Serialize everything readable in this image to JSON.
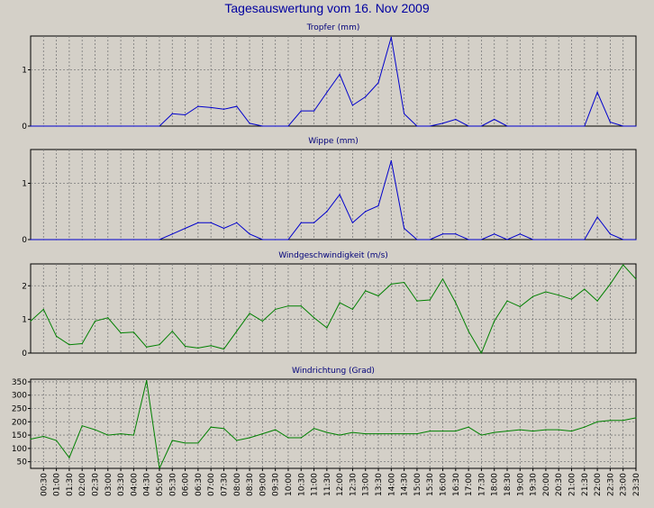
{
  "title": "Tagesauswertung vom 16. Nov 2009",
  "x_ticks": [
    "00:30",
    "01:00",
    "01:30",
    "02:00",
    "02:30",
    "03:00",
    "03:30",
    "04:00",
    "04:30",
    "05:00",
    "05:30",
    "06:00",
    "06:30",
    "07:00",
    "07:30",
    "08:00",
    "08:30",
    "09:00",
    "09:30",
    "10:00",
    "10:30",
    "11:00",
    "11:30",
    "12:00",
    "12:30",
    "13:00",
    "13:30",
    "14:00",
    "14:30",
    "15:00",
    "15:30",
    "16:00",
    "16:30",
    "17:00",
    "17:30",
    "18:00",
    "18:30",
    "19:00",
    "19:30",
    "20:00",
    "20:30",
    "21:00",
    "21:30",
    "22:00",
    "22:30",
    "23:00",
    "23:30"
  ],
  "colors": {
    "blue_series": "#0000cc",
    "green_series": "#008000",
    "panel_bg": "#d4d0c8",
    "title": "#0000a0"
  },
  "chart_data": [
    {
      "type": "line",
      "title": "Tropfer (mm)",
      "x": [
        "00:00",
        "00:30",
        "01:00",
        "01:30",
        "02:00",
        "02:30",
        "03:00",
        "03:30",
        "04:00",
        "04:30",
        "05:00",
        "05:30",
        "06:00",
        "06:30",
        "07:00",
        "07:30",
        "08:00",
        "08:30",
        "09:00",
        "09:30",
        "10:00",
        "10:30",
        "11:00",
        "11:30",
        "12:00",
        "12:30",
        "13:00",
        "13:30",
        "14:00",
        "14:30",
        "15:00",
        "15:30",
        "16:00",
        "16:30",
        "17:00",
        "17:30",
        "18:00",
        "18:30",
        "19:00",
        "19:30",
        "20:00",
        "20:30",
        "21:00",
        "21:30",
        "22:00",
        "22:30",
        "23:00",
        "23:30"
      ],
      "values": [
        0,
        0,
        0,
        0,
        0,
        0,
        0,
        0,
        0,
        0,
        0,
        0.22,
        0.2,
        0.35,
        0.33,
        0.3,
        0.35,
        0.05,
        0,
        0,
        0,
        0.27,
        0.27,
        0.6,
        0.92,
        0.37,
        0.52,
        0.77,
        1.58,
        0.22,
        0,
        0,
        0.05,
        0.12,
        0,
        0,
        0.12,
        0,
        0,
        0,
        0,
        0,
        0,
        0,
        0.6,
        0.07,
        0,
        0
      ],
      "ylim": [
        0,
        1.6
      ],
      "yticks": [
        "0",
        "1"
      ],
      "grid": true,
      "color": "#0000cc"
    },
    {
      "type": "line",
      "title": "Wippe (mm)",
      "x": [
        "00:00",
        "00:30",
        "01:00",
        "01:30",
        "02:00",
        "02:30",
        "03:00",
        "03:30",
        "04:00",
        "04:30",
        "05:00",
        "05:30",
        "06:00",
        "06:30",
        "07:00",
        "07:30",
        "08:00",
        "08:30",
        "09:00",
        "09:30",
        "10:00",
        "10:30",
        "11:00",
        "11:30",
        "12:00",
        "12:30",
        "13:00",
        "13:30",
        "14:00",
        "14:30",
        "15:00",
        "15:30",
        "16:00",
        "16:30",
        "17:00",
        "17:30",
        "18:00",
        "18:30",
        "19:00",
        "19:30",
        "20:00",
        "20:30",
        "21:00",
        "21:30",
        "22:00",
        "22:30",
        "23:00",
        "23:30"
      ],
      "values": [
        0,
        0,
        0,
        0,
        0,
        0,
        0,
        0,
        0,
        0,
        0,
        0.1,
        0.2,
        0.3,
        0.3,
        0.2,
        0.3,
        0.1,
        0,
        0,
        0,
        0.3,
        0.3,
        0.5,
        0.8,
        0.3,
        0.5,
        0.6,
        1.4,
        0.2,
        0,
        0,
        0.1,
        0.1,
        0,
        0,
        0.1,
        0,
        0.1,
        0,
        0,
        0,
        0,
        0,
        0.4,
        0.1,
        0,
        0
      ],
      "ylim": [
        0,
        1.6
      ],
      "yticks": [
        "0",
        "1"
      ],
      "grid": true,
      "color": "#0000cc"
    },
    {
      "type": "line",
      "title": "Windgeschwindigkeit (m/s)",
      "x": [
        "00:00",
        "00:30",
        "01:00",
        "01:30",
        "02:00",
        "02:30",
        "03:00",
        "03:30",
        "04:00",
        "04:30",
        "05:00",
        "05:30",
        "06:00",
        "06:30",
        "07:00",
        "07:30",
        "08:00",
        "08:30",
        "09:00",
        "09:30",
        "10:00",
        "10:30",
        "11:00",
        "11:30",
        "12:00",
        "12:30",
        "13:00",
        "13:30",
        "14:00",
        "14:30",
        "15:00",
        "15:30",
        "16:00",
        "16:30",
        "17:00",
        "17:30",
        "18:00",
        "18:30",
        "19:00",
        "19:30",
        "20:00",
        "20:30",
        "21:00",
        "21:30",
        "22:00",
        "22:30",
        "23:00",
        "23:30"
      ],
      "values": [
        0.95,
        1.3,
        0.5,
        0.25,
        0.28,
        0.95,
        1.05,
        0.6,
        0.62,
        0.18,
        0.25,
        0.65,
        0.2,
        0.15,
        0.22,
        0.12,
        0.65,
        1.18,
        0.95,
        1.3,
        1.4,
        1.4,
        1.05,
        0.75,
        1.5,
        1.3,
        1.85,
        1.7,
        2.05,
        2.1,
        1.55,
        1.58,
        2.2,
        1.5,
        0.65,
        0.0,
        0.95,
        1.55,
        1.38,
        1.68,
        1.82,
        1.72,
        1.6,
        1.9,
        1.55,
        2.05,
        2.62,
        2.2
      ],
      "ylim": [
        0,
        2.65
      ],
      "yticks": [
        "0",
        "1",
        "2"
      ],
      "grid": true,
      "color": "#008000"
    },
    {
      "type": "line",
      "title": "Windrichtung (Grad)",
      "x": [
        "00:00",
        "00:30",
        "01:00",
        "01:30",
        "02:00",
        "02:30",
        "03:00",
        "03:30",
        "04:00",
        "04:30",
        "05:00",
        "05:30",
        "06:00",
        "06:30",
        "07:00",
        "07:30",
        "08:00",
        "08:30",
        "09:00",
        "09:30",
        "10:00",
        "10:30",
        "11:00",
        "11:30",
        "12:00",
        "12:30",
        "13:00",
        "13:30",
        "14:00",
        "14:30",
        "15:00",
        "15:30",
        "16:00",
        "16:30",
        "17:00",
        "17:30",
        "18:00",
        "18:30",
        "19:00",
        "19:30",
        "20:00",
        "20:30",
        "21:00",
        "21:30",
        "22:00",
        "22:30",
        "23:00",
        "23:30"
      ],
      "values": [
        135,
        145,
        130,
        65,
        185,
        170,
        150,
        155,
        150,
        355,
        25,
        130,
        120,
        120,
        180,
        175,
        130,
        140,
        155,
        170,
        140,
        140,
        175,
        160,
        150,
        160,
        155,
        155,
        155,
        155,
        155,
        165,
        165,
        165,
        180,
        150,
        160,
        165,
        170,
        165,
        170,
        170,
        165,
        180,
        200,
        205,
        205,
        215
      ],
      "ylim": [
        25,
        360
      ],
      "yticks": [
        "50",
        "100",
        "150",
        "200",
        "250",
        "300",
        "350"
      ],
      "grid": true,
      "color": "#008000"
    }
  ]
}
